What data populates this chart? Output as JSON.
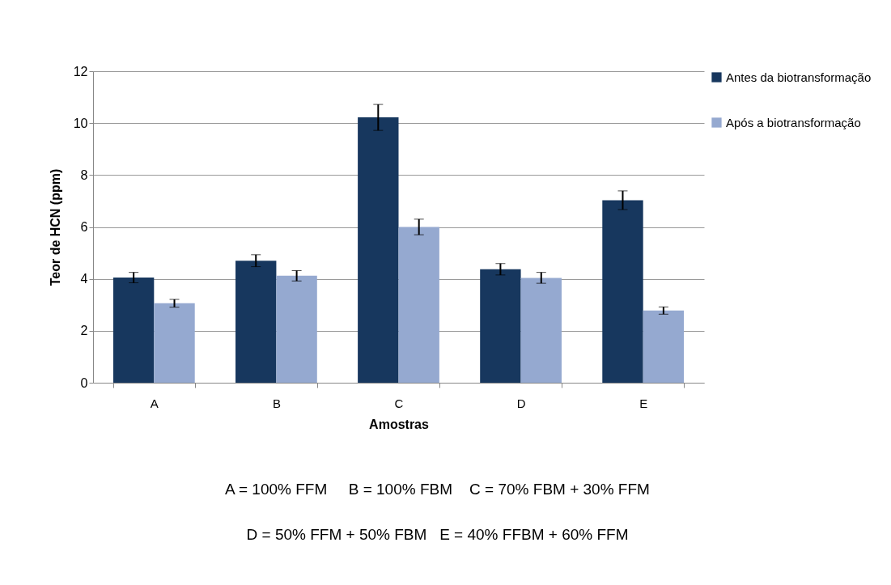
{
  "chart_data": {
    "type": "bar",
    "xlabel": "Amostras",
    "ylabel": "Teor de HCN (ppm)",
    "categories": [
      "A",
      "B",
      "C",
      "D",
      "E"
    ],
    "series": [
      {
        "name": "Antes da biotransformação",
        "color": "#17375e",
        "values": [
          4.05,
          4.7,
          10.22,
          4.37,
          7.03
        ],
        "errors": [
          0.2,
          0.23,
          0.5,
          0.22,
          0.36
        ]
      },
      {
        "name": "Após a biotransformação",
        "color": "#95a9d0",
        "values": [
          3.06,
          4.12,
          6.0,
          4.04,
          2.78
        ],
        "errors": [
          0.15,
          0.2,
          0.3,
          0.21,
          0.14
        ]
      }
    ],
    "ylim": [
      0,
      12
    ],
    "yticks": [
      0,
      2,
      4,
      6,
      8,
      10,
      12
    ],
    "grid": "y",
    "legend": "right",
    "annotations": [
      "A = 100% FFM     B = 100% FBM    C = 70% FBM + 30% FFM",
      "D = 50% FFM + 50% FBM   E = 40% FFBM + 60% FFM"
    ]
  }
}
